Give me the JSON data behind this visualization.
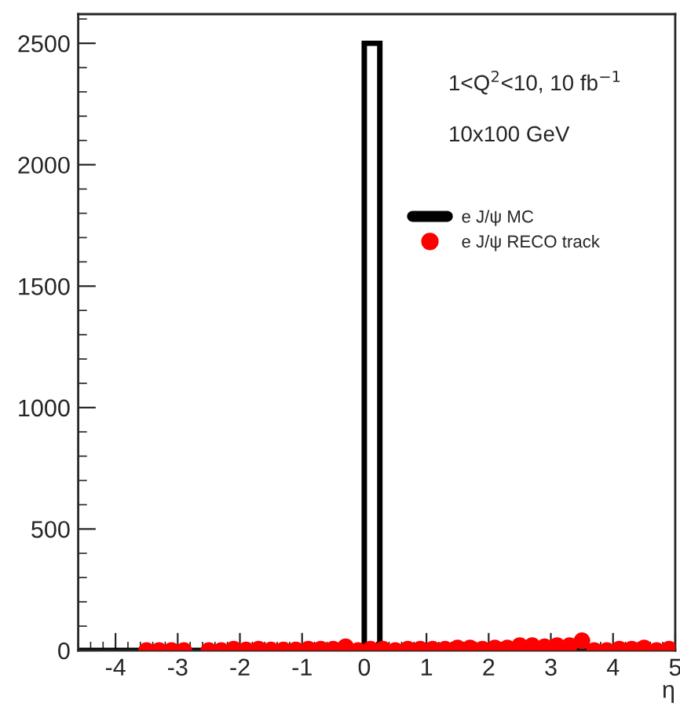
{
  "chart_data": {
    "type": "histogram",
    "xlabel": "η",
    "xlim": [
      -4.6,
      5
    ],
    "ylim": [
      0,
      2620
    ],
    "xticks": [
      -4,
      -3,
      -2,
      -1,
      0,
      1,
      2,
      3,
      4,
      5
    ],
    "yticks": [
      0,
      500,
      1000,
      1500,
      2000,
      2500
    ],
    "series": [
      {
        "name": "e J/ψ MC",
        "color": "#000000",
        "bins": [
          -4.6,
          0,
          0.25,
          5
        ],
        "values": [
          0,
          2500,
          0
        ]
      },
      {
        "name": "e J/ψ RECO track",
        "type": "scatter",
        "color": "#ff0000",
        "marker": "circle",
        "x": [
          -3.5,
          -3.3,
          -3.1,
          -2.9,
          -2.5,
          -2.3,
          -2.1,
          -1.9,
          -1.7,
          -1.5,
          -1.3,
          -1.1,
          -0.9,
          -0.7,
          -0.5,
          -0.3,
          -0.1,
          0.1,
          0.3,
          0.5,
          0.7,
          0.9,
          1.1,
          1.3,
          1.5,
          1.7,
          1.9,
          2.1,
          2.3,
          2.5,
          2.7,
          2.9,
          3.1,
          3.3,
          3.5,
          3.7,
          3.9,
          4.1,
          4.3,
          4.5,
          4.7,
          4.9
        ],
        "values": [
          0,
          0,
          0,
          0,
          0,
          0,
          5,
          2,
          5,
          2,
          2,
          2,
          5,
          5,
          5,
          15,
          0,
          5,
          5,
          0,
          5,
          5,
          5,
          5,
          10,
          10,
          5,
          10,
          10,
          20,
          20,
          15,
          20,
          20,
          40,
          0,
          0,
          5,
          5,
          10,
          0,
          5
        ]
      }
    ],
    "annotations": [
      "1<Q$^{2}$<10, 10 fb$^{−1}$",
      "10x100 GeV"
    ],
    "legend": "right",
    "grid": false
  }
}
